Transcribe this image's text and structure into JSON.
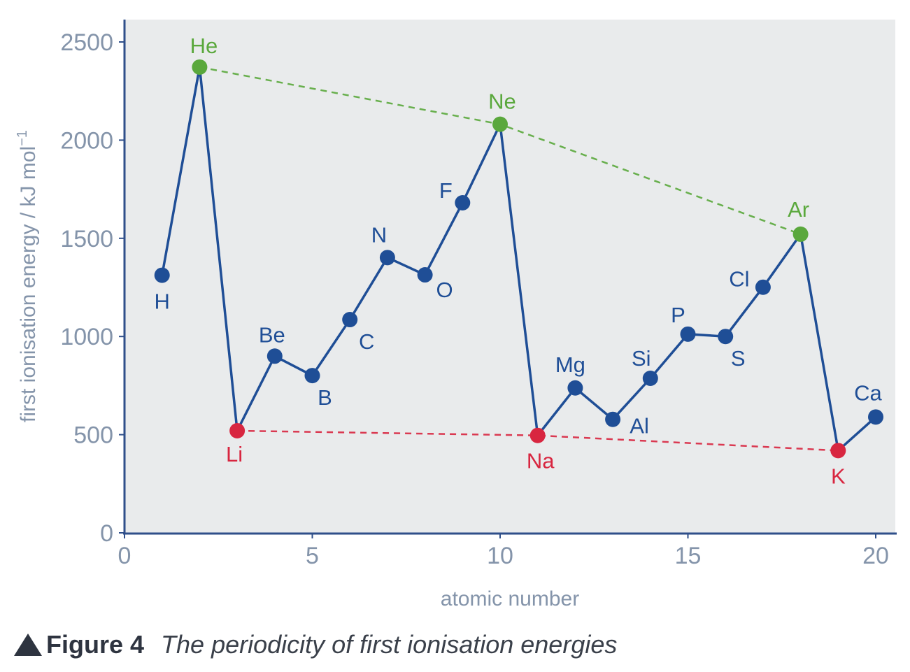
{
  "chart_data": {
    "type": "line",
    "xlabel": "atomic number",
    "ylabel_main": "first ionisation energy / kJ mol",
    "ylabel_sup": "−1",
    "xlim": [
      0,
      20
    ],
    "ylim": [
      0,
      2500
    ],
    "xticks": [
      0,
      5,
      10,
      15,
      20
    ],
    "yticks": [
      0,
      500,
      1000,
      1500,
      2000,
      2500
    ],
    "grid": false,
    "colors": {
      "default": "#1f4e96",
      "noble_gas": "#5aa83c",
      "alkali_metal": "#d82640",
      "axis": "#2f4f8a",
      "plot_bg": "#e9ebec"
    },
    "points": [
      {
        "z": 1,
        "symbol": "H",
        "energy": 1312,
        "group": "default"
      },
      {
        "z": 2,
        "symbol": "He",
        "energy": 2372,
        "group": "noble_gas"
      },
      {
        "z": 3,
        "symbol": "Li",
        "energy": 520,
        "group": "alkali_metal"
      },
      {
        "z": 4,
        "symbol": "Be",
        "energy": 900,
        "group": "default"
      },
      {
        "z": 5,
        "symbol": "B",
        "energy": 801,
        "group": "default"
      },
      {
        "z": 6,
        "symbol": "C",
        "energy": 1086,
        "group": "default"
      },
      {
        "z": 7,
        "symbol": "N",
        "energy": 1402,
        "group": "default"
      },
      {
        "z": 8,
        "symbol": "O",
        "energy": 1314,
        "group": "default"
      },
      {
        "z": 9,
        "symbol": "F",
        "energy": 1681,
        "group": "default"
      },
      {
        "z": 10,
        "symbol": "Ne",
        "energy": 2081,
        "group": "noble_gas"
      },
      {
        "z": 11,
        "symbol": "Na",
        "energy": 496,
        "group": "alkali_metal"
      },
      {
        "z": 12,
        "symbol": "Mg",
        "energy": 738,
        "group": "default"
      },
      {
        "z": 13,
        "symbol": "Al",
        "energy": 578,
        "group": "default"
      },
      {
        "z": 14,
        "symbol": "Si",
        "energy": 787,
        "group": "default"
      },
      {
        "z": 15,
        "symbol": "P",
        "energy": 1012,
        "group": "default"
      },
      {
        "z": 16,
        "symbol": "S",
        "energy": 1000,
        "group": "default"
      },
      {
        "z": 17,
        "symbol": "Cl",
        "energy": 1251,
        "group": "default"
      },
      {
        "z": 18,
        "symbol": "Ar",
        "energy": 1521,
        "group": "noble_gas"
      },
      {
        "z": 19,
        "symbol": "K",
        "energy": 419,
        "group": "alkali_metal"
      },
      {
        "z": 20,
        "symbol": "Ca",
        "energy": 590,
        "group": "default"
      }
    ],
    "trend_lines": [
      {
        "group": "noble_gas",
        "symbols": [
          "He",
          "Ne",
          "Ar"
        ],
        "style": "dashed"
      },
      {
        "group": "alkali_metal",
        "symbols": [
          "Li",
          "Na",
          "K"
        ],
        "style": "dashed"
      }
    ]
  },
  "caption": {
    "figure_label": "Figure 4",
    "text": "The periodicity of first ionisation energies",
    "icon": "triangle-marker-icon"
  }
}
